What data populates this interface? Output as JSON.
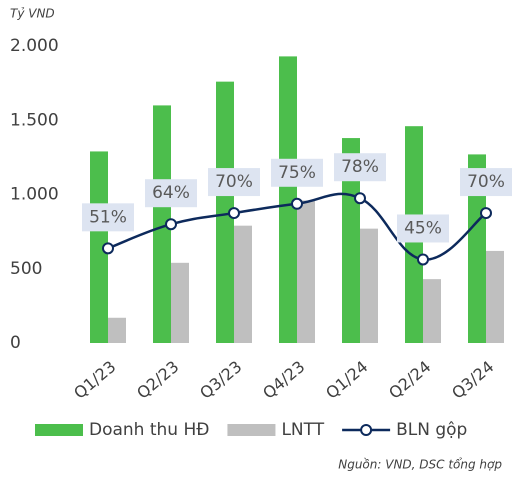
{
  "chart_data": {
    "type": "bar_line",
    "unit_label": "Tỷ VND",
    "source": "Nguồn: VND, DSC tổng hợp",
    "categories": [
      "Q1/23",
      "Q2/23",
      "Q3/23",
      "Q4/23",
      "Q1/24",
      "Q2/24",
      "Q3/24"
    ],
    "series": [
      {
        "name": "Doanh thu HĐ",
        "color": "#4cbe4c",
        "type": "bar",
        "values": [
          1290,
          1600,
          1760,
          1930,
          1380,
          1460,
          1270
        ]
      },
      {
        "name": "LNTT",
        "color": "#bfbfbf",
        "type": "bar",
        "values": [
          170,
          540,
          790,
          960,
          770,
          430,
          620
        ]
      },
      {
        "name": "BLN gộp",
        "color": "#0d2a5c",
        "type": "line",
        "axis": "y2",
        "values": [
          51,
          64,
          70,
          75,
          78,
          45,
          70
        ],
        "value_labels": [
          "51%",
          "64%",
          "70%",
          "75%",
          "78%",
          "45%",
          "70%"
        ]
      }
    ],
    "ylim": [
      0,
      2000
    ],
    "yticks": [
      0,
      500,
      {
        "value": 1000,
        "label": "1.000"
      },
      {
        "value": 1500,
        "label": "1.500"
      },
      {
        "value": 2000,
        "label": "2.000"
      }
    ],
    "y2lim": [
      0,
      160
    ],
    "grid": false,
    "legend": "bottom"
  }
}
